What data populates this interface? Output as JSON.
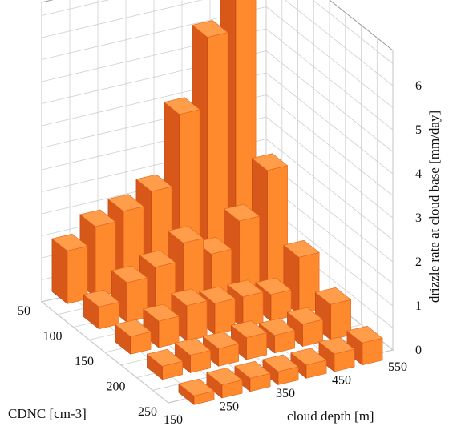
{
  "chart_data": {
    "type": "bar3d",
    "title": "",
    "xlabel": "cloud depth [m]",
    "ylabel": "CDNC [cm-3]",
    "zlabel": "drizzle rate at cloud base [mm/day]",
    "x_ticks": [
      "150",
      "250",
      "350",
      "450",
      "550"
    ],
    "y_ticks": [
      "50",
      "100",
      "150",
      "200",
      "250"
    ],
    "z_ticks": [
      "0",
      "1",
      "2",
      "3",
      "4",
      "5",
      "6"
    ],
    "zlim": [
      0,
      6
    ],
    "x_categories": [
      200,
      250,
      300,
      350,
      400,
      450,
      500
    ],
    "y_categories": [
      50,
      100,
      150,
      200,
      250
    ],
    "values": [
      [
        1.2,
        1.6,
        1.8,
        2.1,
        3.7,
        5.3,
        6.9
      ],
      [
        0.5,
        0.9,
        1.1,
        1.5,
        1.1,
        1.7,
        2.7
      ],
      [
        0.4,
        0.6,
        0.8,
        0.7,
        0.7,
        0.6,
        1.3
      ],
      [
        0.3,
        0.4,
        0.4,
        0.5,
        0.4,
        0.5,
        0.8
      ],
      [
        0.2,
        0.3,
        0.3,
        0.3,
        0.3,
        0.4,
        0.5
      ]
    ],
    "bar_color": "#ff7f2a",
    "grid": true
  }
}
